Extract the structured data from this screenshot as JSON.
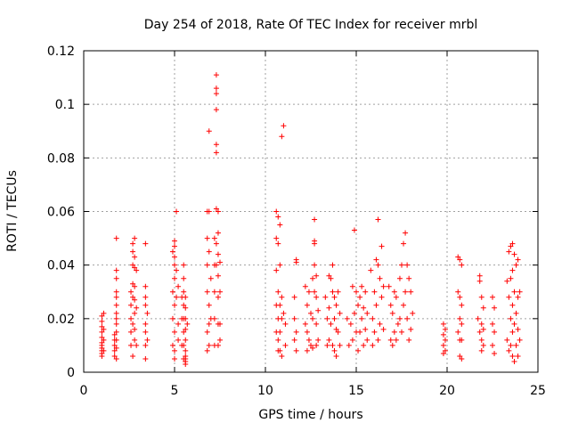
{
  "chart_data": {
    "type": "scatter",
    "title": "Day 254 of 2018, Rate Of TEC Index for receiver mrbl",
    "xlabel": "GPS time / hours",
    "ylabel": "ROTI / TECUs",
    "xlim": [
      0,
      25
    ],
    "ylim": [
      0,
      0.12
    ],
    "xticks": [
      0,
      5,
      10,
      15,
      20,
      25
    ],
    "xtick_labels": [
      "0",
      "5",
      "10",
      "15",
      "20",
      "25"
    ],
    "yticks": [
      0,
      0.02,
      0.04,
      0.06,
      0.08,
      0.1,
      0.12
    ],
    "ytick_labels": [
      "0",
      "0.02",
      "0.04",
      "0.06",
      "0.08",
      "0.1",
      "0.12"
    ],
    "grid": true,
    "marker": "+",
    "marker_color": "#ff0000",
    "series": [
      {
        "name": "ROTI",
        "x": [
          1.0,
          1.0,
          1.0,
          1.0,
          1.0,
          1.0,
          1.0,
          1.0,
          1.0,
          1.0,
          1.0,
          1.1,
          1.1,
          1.1,
          1.1,
          1.7,
          1.7,
          1.7,
          1.7,
          1.7,
          1.8,
          1.8,
          1.8,
          1.8,
          1.8,
          1.8,
          1.8,
          1.8,
          1.8,
          1.8,
          1.8,
          1.8,
          1.8,
          2.6,
          2.6,
          2.6,
          2.6,
          2.6,
          2.7,
          2.7,
          2.7,
          2.7,
          2.7,
          2.7,
          2.7,
          2.8,
          2.8,
          2.8,
          2.8,
          2.8,
          2.8,
          2.8,
          2.8,
          2.9,
          2.9,
          2.9,
          3.4,
          3.4,
          3.4,
          3.4,
          3.4,
          3.4,
          3.4,
          3.4,
          3.5,
          3.5,
          4.9,
          4.9,
          4.9,
          4.9,
          5.0,
          5.0,
          5.0,
          5.0,
          5.0,
          5.0,
          5.0,
          5.0,
          5.0,
          5.1,
          5.1,
          5.1,
          5.2,
          5.2,
          5.2,
          5.4,
          5.4,
          5.4,
          5.5,
          5.5,
          5.5,
          5.5,
          5.5,
          5.5,
          5.5,
          5.5,
          5.6,
          5.6,
          5.6,
          5.6,
          5.6,
          5.6,
          5.6,
          5.6,
          5.6,
          5.6,
          5.7,
          6.8,
          6.8,
          6.8,
          6.8,
          6.8,
          6.8,
          6.9,
          6.9,
          6.9,
          6.9,
          6.9,
          6.9,
          7.0,
          7.0,
          7.2,
          7.2,
          7.2,
          7.2,
          7.2,
          7.3,
          7.3,
          7.3,
          7.3,
          7.3,
          7.3,
          7.3,
          7.3,
          7.3,
          7.4,
          7.4,
          7.4,
          7.4,
          7.4,
          7.4,
          7.4,
          7.5,
          7.5,
          7.5,
          7.5,
          10.6,
          10.6,
          10.6,
          10.6,
          10.6,
          10.7,
          10.7,
          10.7,
          10.7,
          10.7,
          10.7,
          10.8,
          10.8,
          10.8,
          10.8,
          10.8,
          10.9,
          10.9,
          10.9,
          10.9,
          11.0,
          11.0,
          11.1,
          11.1,
          11.6,
          11.6,
          11.6,
          11.7,
          11.7,
          11.7,
          11.7,
          12.2,
          12.2,
          12.3,
          12.3,
          12.3,
          12.4,
          12.4,
          12.5,
          12.5,
          12.6,
          12.6,
          12.6,
          12.7,
          12.7,
          12.7,
          12.7,
          12.7,
          12.8,
          12.8,
          12.8,
          12.8,
          12.9,
          12.9,
          13.3,
          13.4,
          13.4,
          13.5,
          13.5,
          13.5,
          13.6,
          13.6,
          13.7,
          13.7,
          13.7,
          13.8,
          13.8,
          13.8,
          13.9,
          13.9,
          13.9,
          14.0,
          14.0,
          14.1,
          14.1,
          14.5,
          14.6,
          14.7,
          14.8,
          14.8,
          14.9,
          14.9,
          15.0,
          15.0,
          15.1,
          15.1,
          15.2,
          15.2,
          15.3,
          15.3,
          15.4,
          15.4,
          15.5,
          15.5,
          15.6,
          15.6,
          15.8,
          15.9,
          15.9,
          16.0,
          16.0,
          16.1,
          16.1,
          16.2,
          16.2,
          16.2,
          16.3,
          16.3,
          16.4,
          16.4,
          16.5,
          16.5,
          16.8,
          16.9,
          16.9,
          17.0,
          17.0,
          17.1,
          17.1,
          17.2,
          17.2,
          17.3,
          17.4,
          17.4,
          17.5,
          17.5,
          17.6,
          17.6,
          17.7,
          17.7,
          17.8,
          17.8,
          17.9,
          17.9,
          18.0,
          18.0,
          18.1,
          19.8,
          19.8,
          19.8,
          19.8,
          19.9,
          19.9,
          19.9,
          20.6,
          20.6,
          20.6,
          20.7,
          20.7,
          20.7,
          20.7,
          20.7,
          20.8,
          20.8,
          20.8,
          20.8,
          20.8,
          21.7,
          21.8,
          21.8,
          21.8,
          21.9,
          21.9,
          21.9,
          21.9,
          22.0,
          22.0,
          22.0,
          22.5,
          22.5,
          22.5,
          22.6,
          22.6,
          22.6,
          23.3,
          23.3,
          23.4,
          23.4,
          23.4,
          23.5,
          23.5,
          23.5,
          23.5,
          23.6,
          23.6,
          23.6,
          23.6,
          23.6,
          23.7,
          23.7,
          23.7,
          23.7,
          23.8,
          23.8,
          23.8,
          23.9,
          23.9,
          23.9,
          23.9,
          24.0,
          24.0
        ],
        "y": [
          0.021,
          0.019,
          0.017,
          0.015,
          0.013,
          0.011,
          0.01,
          0.009,
          0.008,
          0.007,
          0.006,
          0.022,
          0.016,
          0.012,
          0.008,
          0.014,
          0.012,
          0.01,
          0.008,
          0.006,
          0.05,
          0.038,
          0.035,
          0.03,
          0.028,
          0.025,
          0.022,
          0.02,
          0.018,
          0.015,
          0.012,
          0.009,
          0.005,
          0.03,
          0.025,
          0.02,
          0.015,
          0.01,
          0.048,
          0.045,
          0.04,
          0.033,
          0.028,
          0.018,
          0.006,
          0.05,
          0.043,
          0.039,
          0.032,
          0.027,
          0.022,
          0.016,
          0.012,
          0.038,
          0.024,
          0.01,
          0.048,
          0.032,
          0.028,
          0.025,
          0.018,
          0.015,
          0.01,
          0.005,
          0.022,
          0.012,
          0.045,
          0.03,
          0.02,
          0.01,
          0.049,
          0.047,
          0.043,
          0.04,
          0.035,
          0.025,
          0.015,
          0.008,
          0.005,
          0.06,
          0.038,
          0.028,
          0.032,
          0.018,
          0.012,
          0.028,
          0.02,
          0.01,
          0.04,
          0.035,
          0.03,
          0.025,
          0.02,
          0.015,
          0.01,
          0.005,
          0.028,
          0.024,
          0.02,
          0.016,
          0.012,
          0.008,
          0.006,
          0.005,
          0.004,
          0.003,
          0.018,
          0.06,
          0.05,
          0.04,
          0.03,
          0.015,
          0.008,
          0.09,
          0.06,
          0.045,
          0.025,
          0.018,
          0.01,
          0.035,
          0.02,
          0.05,
          0.04,
          0.03,
          0.02,
          0.01,
          0.111,
          0.106,
          0.104,
          0.098,
          0.085,
          0.082,
          0.061,
          0.048,
          0.04,
          0.06,
          0.052,
          0.044,
          0.036,
          0.028,
          0.018,
          0.01,
          0.041,
          0.03,
          0.018,
          0.012,
          0.06,
          0.05,
          0.038,
          0.025,
          0.015,
          0.058,
          0.048,
          0.03,
          0.02,
          0.012,
          0.008,
          0.055,
          0.04,
          0.025,
          0.015,
          0.008,
          0.088,
          0.028,
          0.02,
          0.006,
          0.092,
          0.022,
          0.018,
          0.01,
          0.028,
          0.02,
          0.012,
          0.042,
          0.041,
          0.015,
          0.008,
          0.032,
          0.018,
          0.025,
          0.015,
          0.008,
          0.03,
          0.012,
          0.022,
          0.01,
          0.035,
          0.02,
          0.009,
          0.057,
          0.049,
          0.048,
          0.04,
          0.03,
          0.036,
          0.028,
          0.018,
          0.01,
          0.023,
          0.012,
          0.028,
          0.02,
          0.01,
          0.036,
          0.024,
          0.012,
          0.035,
          0.018,
          0.04,
          0.03,
          0.01,
          0.028,
          0.02,
          0.008,
          0.025,
          0.016,
          0.006,
          0.03,
          0.015,
          0.022,
          0.01,
          0.02,
          0.01,
          0.018,
          0.032,
          0.012,
          0.053,
          0.022,
          0.03,
          0.015,
          0.025,
          0.008,
          0.028,
          0.015,
          0.032,
          0.02,
          0.024,
          0.01,
          0.03,
          0.016,
          0.022,
          0.012,
          0.038,
          0.02,
          0.01,
          0.03,
          0.015,
          0.042,
          0.025,
          0.057,
          0.04,
          0.012,
          0.035,
          0.018,
          0.047,
          0.028,
          0.032,
          0.016,
          0.032,
          0.025,
          0.012,
          0.022,
          0.01,
          0.03,
          0.015,
          0.028,
          0.012,
          0.018,
          0.035,
          0.02,
          0.04,
          0.015,
          0.048,
          0.025,
          0.052,
          0.03,
          0.04,
          0.02,
          0.035,
          0.012,
          0.03,
          0.016,
          0.022,
          0.018,
          0.014,
          0.01,
          0.007,
          0.016,
          0.012,
          0.008,
          0.043,
          0.03,
          0.015,
          0.042,
          0.028,
          0.02,
          0.012,
          0.006,
          0.04,
          0.025,
          0.018,
          0.012,
          0.005,
          0.02,
          0.034,
          0.036,
          0.015,
          0.028,
          0.018,
          0.012,
          0.008,
          0.024,
          0.016,
          0.01,
          0.028,
          0.018,
          0.01,
          0.024,
          0.015,
          0.007,
          0.034,
          0.012,
          0.045,
          0.028,
          0.008,
          0.047,
          0.035,
          0.02,
          0.01,
          0.048,
          0.038,
          0.025,
          0.015,
          0.006,
          0.044,
          0.03,
          0.018,
          0.004,
          0.04,
          0.022,
          0.01,
          0.042,
          0.028,
          0.016,
          0.006,
          0.03,
          0.012
        ]
      }
    ]
  }
}
